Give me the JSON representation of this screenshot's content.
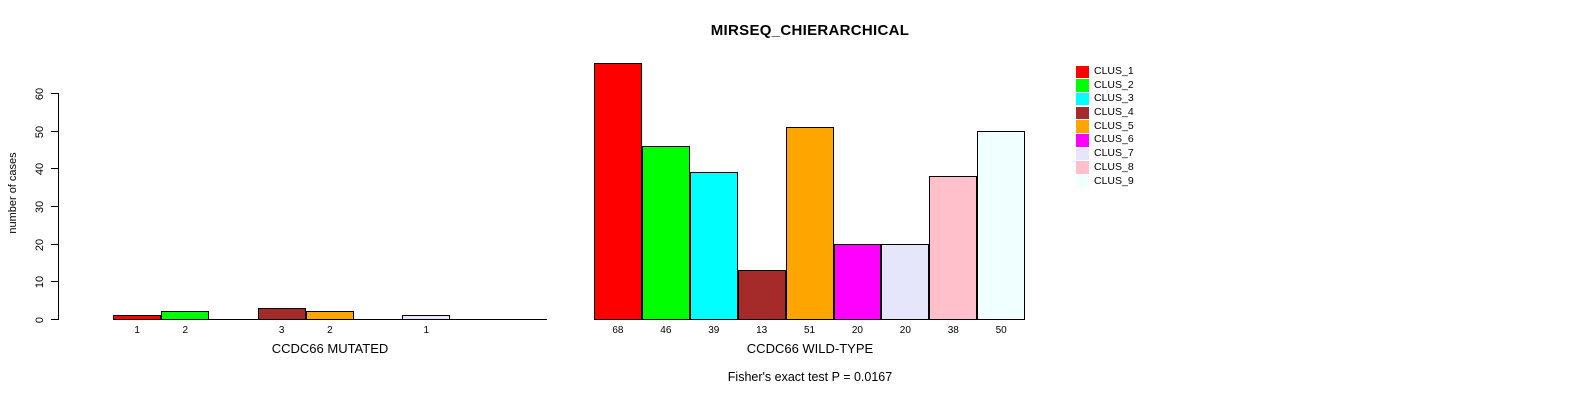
{
  "figure": {
    "title": "MIRSEQ_CHIERARCHICAL",
    "ylabel": "number of cases",
    "annotation": "Fisher's exact test P = 0.0167"
  },
  "legend": {
    "position": "right",
    "entries": [
      {
        "label": "CLUS_1",
        "color": "#FF0000"
      },
      {
        "label": "CLUS_2",
        "color": "#00FF00"
      },
      {
        "label": "CLUS_3",
        "color": "#00FFFF"
      },
      {
        "label": "CLUS_4",
        "color": "#A52A2A"
      },
      {
        "label": "CLUS_5",
        "color": "#FFA500"
      },
      {
        "label": "CLUS_6",
        "color": "#FF00FF"
      },
      {
        "label": "CLUS_7",
        "color": "#E6E6FA"
      },
      {
        "label": "CLUS_8",
        "color": "#FFC0CB"
      },
      {
        "label": "CLUS_9",
        "color": "#F0FFFF"
      }
    ]
  },
  "chart_data": [
    {
      "type": "bar",
      "panel": "left",
      "title": "",
      "xlabel": "CCDC66 MUTATED",
      "ylabel": "number of cases",
      "ylim": [
        0,
        60
      ],
      "yticks": [
        0,
        10,
        20,
        30,
        40,
        50,
        60
      ],
      "grid": false,
      "categories": [
        "CLUS_1",
        "CLUS_2",
        "CLUS_3",
        "CLUS_4",
        "CLUS_5",
        "CLUS_6",
        "CLUS_7",
        "CLUS_8",
        "CLUS_9"
      ],
      "values": [
        1,
        2,
        0,
        3,
        2,
        0,
        1,
        0,
        0
      ],
      "bar_labels": [
        "1",
        "2",
        "",
        "3",
        "2",
        "",
        "1",
        "",
        ""
      ]
    },
    {
      "type": "bar",
      "panel": "right",
      "title": "MIRSEQ_CHIERARCHICAL",
      "xlabel": "CCDC66 WILD-TYPE",
      "ylabel": "number of cases",
      "ylim": [
        0,
        60
      ],
      "yticks": [
        0,
        10,
        20,
        30,
        40,
        50,
        60
      ],
      "grid": false,
      "categories": [
        "CLUS_1",
        "CLUS_2",
        "CLUS_3",
        "CLUS_4",
        "CLUS_5",
        "CLUS_6",
        "CLUS_7",
        "CLUS_8",
        "CLUS_9"
      ],
      "values": [
        68,
        46,
        39,
        13,
        51,
        20,
        20,
        38,
        50
      ],
      "bar_labels": [
        "68",
        "46",
        "39",
        "13",
        "51",
        "20",
        "20",
        "38",
        "50"
      ]
    }
  ]
}
